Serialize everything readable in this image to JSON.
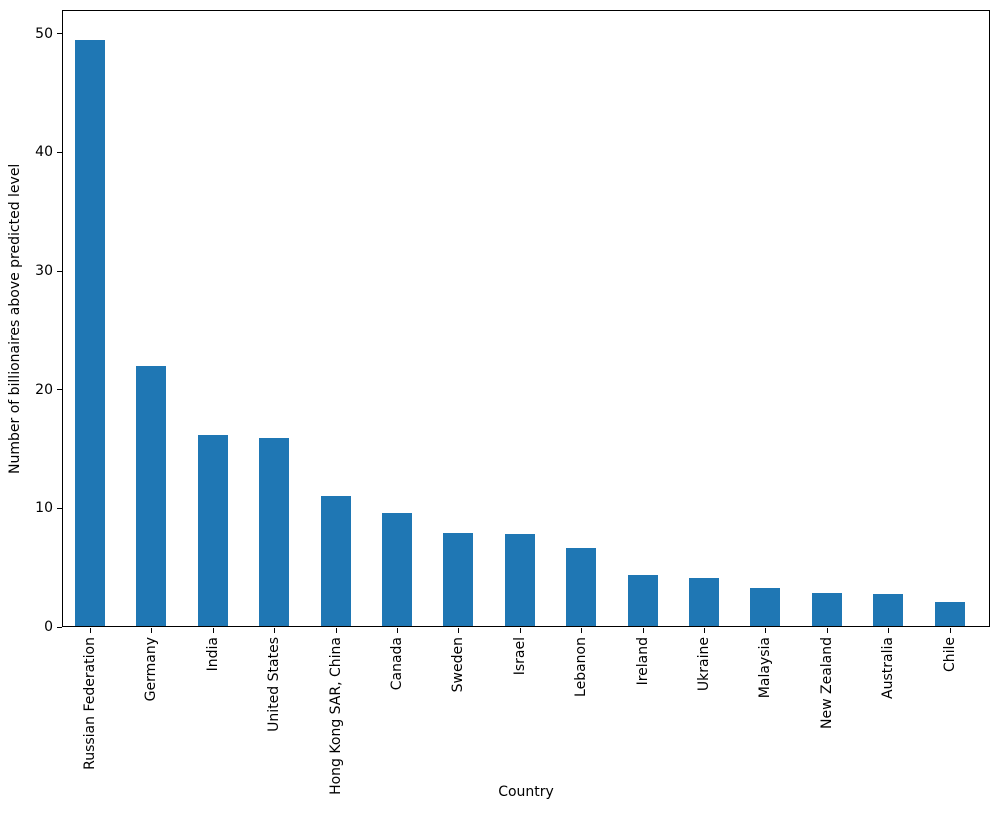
{
  "chart_data": {
    "type": "bar",
    "title": "",
    "xlabel": "Country",
    "ylabel": "Number of billionaires above predicted level",
    "categories": [
      "Russian Federation",
      "Germany",
      "India",
      "United States",
      "Hong Kong SAR, China",
      "Canada",
      "Sweden",
      "Israel",
      "Lebanon",
      "Ireland",
      "Ukraine",
      "Malaysia",
      "New Zealand",
      "Australia",
      "Chile"
    ],
    "values": [
      49.5,
      22.0,
      16.2,
      15.9,
      11.0,
      9.6,
      7.9,
      7.8,
      6.7,
      4.4,
      4.1,
      3.3,
      2.9,
      2.8,
      2.1
    ],
    "ylim": [
      0,
      52
    ],
    "yticks": [
      0,
      10,
      20,
      30,
      40,
      50
    ],
    "bar_color": "#1f77b4",
    "axis_color": "#000000",
    "text_color": "#000000",
    "grid": false,
    "legend": false
  }
}
